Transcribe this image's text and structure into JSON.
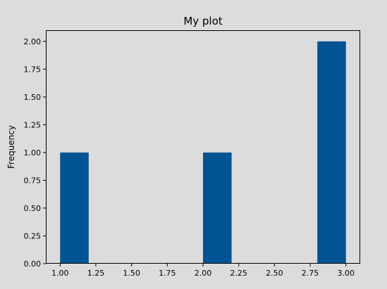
{
  "chart_data": {
    "type": "bar",
    "title": "My plot",
    "xlabel": "",
    "ylabel": "Frequency",
    "bins": [
      {
        "x0": 1.0,
        "x1": 1.2,
        "count": 1
      },
      {
        "x0": 1.2,
        "x1": 1.4,
        "count": 0
      },
      {
        "x0": 1.4,
        "x1": 1.6,
        "count": 0
      },
      {
        "x0": 1.6,
        "x1": 1.8,
        "count": 0
      },
      {
        "x0": 1.8,
        "x1": 2.0,
        "count": 0
      },
      {
        "x0": 2.0,
        "x1": 2.2,
        "count": 1
      },
      {
        "x0": 2.2,
        "x1": 2.4,
        "count": 0
      },
      {
        "x0": 2.4,
        "x1": 2.6,
        "count": 0
      },
      {
        "x0": 2.6,
        "x1": 2.8,
        "count": 0
      },
      {
        "x0": 2.8,
        "x1": 3.0,
        "count": 2
      }
    ],
    "xlim": [
      0.9,
      3.1
    ],
    "ylim": [
      0,
      2.1
    ],
    "xticks": [
      "1.00",
      "1.25",
      "1.50",
      "1.75",
      "2.00",
      "2.25",
      "2.50",
      "2.75",
      "3.00"
    ],
    "yticks": [
      "0.00",
      "0.25",
      "0.50",
      "0.75",
      "1.00",
      "1.25",
      "1.50",
      "1.75",
      "2.00"
    ],
    "grid": false,
    "bar_color": "#005493",
    "background_color": "#dcdcdc",
    "plot_background_color": "#dcdcdc"
  }
}
